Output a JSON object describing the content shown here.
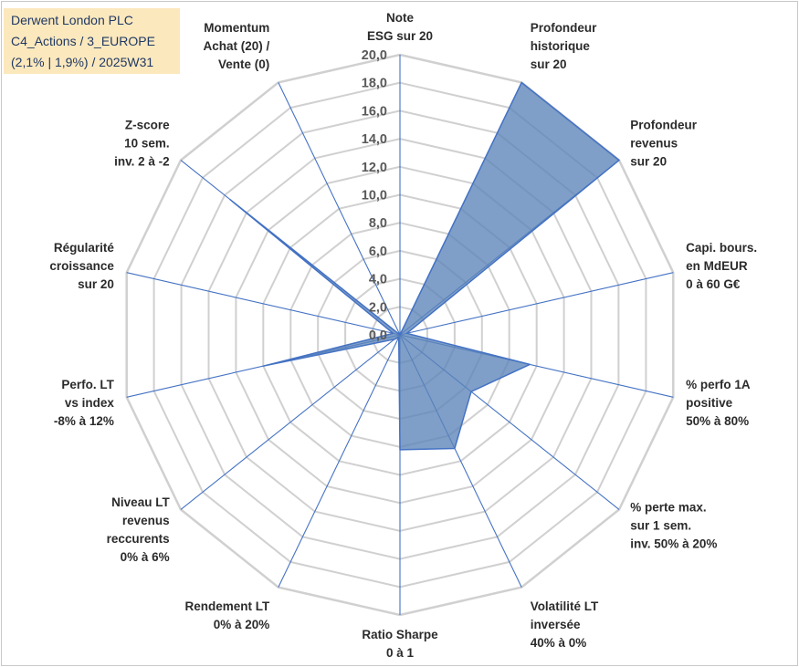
{
  "title_box": {
    "line1": "Derwent London PLC",
    "line2": "C4_Actions / 3_EUROPE",
    "line3": "(2,1% | 1,9%) / 2025W31"
  },
  "colors": {
    "fill": "#5b84b8",
    "stroke": "#4472c4",
    "grid": "#d0d0d0",
    "spoke": "#4472c4",
    "title_bg": "#fbe8bd",
    "title_text": "#1f3864"
  },
  "chart_data": {
    "type": "radar",
    "range": [
      0,
      20
    ],
    "grid": true,
    "tick_labels": [
      "0,0",
      "2,0",
      "4,0",
      "6,0",
      "8,0",
      "10,0",
      "12,0",
      "14,0",
      "16,0",
      "18,0",
      "20,0"
    ],
    "axes": [
      {
        "lines": [
          "Note",
          "ESG sur 20"
        ]
      },
      {
        "lines": [
          "Profondeur",
          "historique",
          "sur 20"
        ]
      },
      {
        "lines": [
          "Profondeur",
          "revenus",
          "sur 20"
        ]
      },
      {
        "lines": [
          "Capi. bours.",
          "en MdEUR",
          "0 à 60 G€"
        ]
      },
      {
        "lines": [
          "% perfo 1A",
          "positive",
          "50% à 80%"
        ]
      },
      {
        "lines": [
          "% perte max.",
          "sur 1 sem.",
          "inv. 50% à 20%"
        ]
      },
      {
        "lines": [
          "Volatilité LT",
          "inversée",
          "40% à 0%"
        ]
      },
      {
        "lines": [
          "Ratio Sharpe",
          "0 à 1"
        ]
      },
      {
        "lines": [
          "Rendement LT",
          "0% à 20%"
        ]
      },
      {
        "lines": [
          "Niveau LT",
          "revenus",
          "reccurents",
          "0% à 6%"
        ]
      },
      {
        "lines": [
          "Perfo. LT",
          "vs index",
          "-8% à 12%"
        ]
      },
      {
        "lines": [
          "Régularité",
          "croissance",
          "sur 20"
        ]
      },
      {
        "lines": [
          "Z-score",
          "10 sem.",
          "inv. 2 à -2"
        ]
      },
      {
        "lines": [
          "Momentum",
          "Achat (20) /",
          "Vente (0)"
        ]
      }
    ],
    "values": [
      0,
      20,
      20,
      0.5,
      9.5,
      6.5,
      9.0,
      8.2,
      0.2,
      0.5,
      10.0,
      0.5,
      15.5,
      0
    ]
  }
}
